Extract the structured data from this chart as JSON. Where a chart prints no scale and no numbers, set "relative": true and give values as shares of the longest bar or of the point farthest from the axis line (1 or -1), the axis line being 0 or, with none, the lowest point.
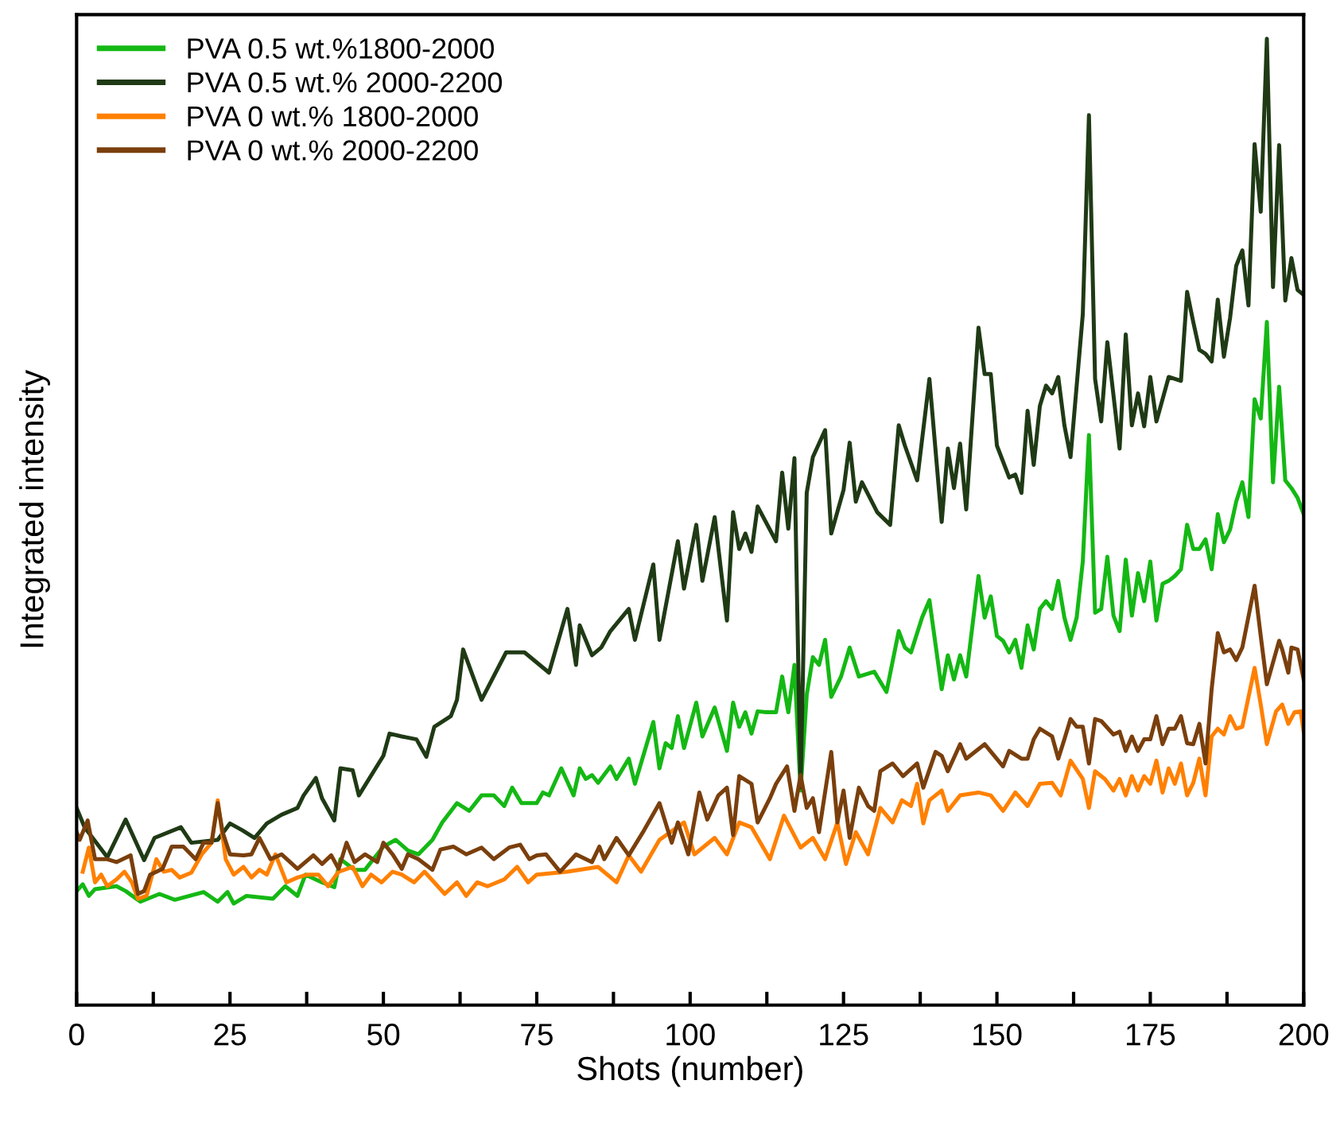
{
  "chart_data": {
    "type": "line",
    "relative": true,
    "xlabel": "Shots (number)",
    "ylabel": "Integrated intensity",
    "xlim": [
      0,
      200
    ],
    "xticks": [
      0,
      {
        "value": 12.5,
        "label": null
      },
      25,
      {
        "value": 37.5,
        "label": null
      },
      50,
      {
        "value": 62.5,
        "label": null
      },
      75,
      {
        "value": 87.5,
        "label": null
      },
      100,
      {
        "value": 112.5,
        "label": null
      },
      125,
      {
        "value": 137.5,
        "label": null
      },
      150,
      {
        "value": 162.5,
        "label": null
      },
      175,
      {
        "value": 187.5,
        "label": null
      },
      200
    ],
    "legend": "top left",
    "grid": false,
    "marker": "none",
    "line_style": "solid",
    "series": [
      {
        "name": "PVA 0.5 wt.%1800-2000",
        "color": "#14b814",
        "x": [
          0,
          1,
          2,
          3,
          6.5,
          8,
          10.4,
          13.5,
          16,
          20.7,
          23,
          24.6,
          25.6,
          27.7,
          32,
          34,
          36,
          37.3,
          40,
          42,
          43,
          45.3,
          47,
          50,
          52,
          54,
          55.7,
          58,
          59.6,
          62,
          64,
          66,
          68,
          69.7,
          71,
          72.5,
          75,
          76,
          77,
          79,
          81,
          82,
          83,
          84,
          85,
          87,
          88,
          90,
          91,
          94,
          95,
          96,
          97,
          98,
          99,
          101,
          102,
          104,
          106,
          107,
          108,
          109,
          110,
          111,
          112.4,
          114,
          115,
          116,
          117,
          118,
          119,
          120,
          121,
          122,
          123,
          124.6,
          126,
          127.5,
          130,
          132,
          134,
          135,
          136,
          137.8,
          139,
          141,
          142,
          143,
          144,
          145,
          147,
          148,
          149,
          150,
          151,
          152,
          153,
          154,
          155,
          156,
          157,
          158,
          159,
          160,
          161,
          162,
          163,
          164,
          165,
          166,
          167,
          168,
          169,
          170,
          171,
          172,
          173,
          174,
          175,
          176,
          177,
          178,
          179,
          180,
          181,
          182,
          183,
          184,
          185,
          186,
          187,
          188,
          189,
          190,
          191,
          192,
          193,
          194,
          195,
          196,
          197,
          198,
          199,
          200
        ],
        "values": [
          0.118,
          0.125,
          0.113,
          0.12,
          0.123,
          0.118,
          0.107,
          0.115,
          0.109,
          0.117,
          0.107,
          0.117,
          0.105,
          0.113,
          0.11,
          0.123,
          0.113,
          0.135,
          0.127,
          0.122,
          0.151,
          0.14,
          0.14,
          0.164,
          0.171,
          0.16,
          0.156,
          0.171,
          0.189,
          0.209,
          0.201,
          0.217,
          0.217,
          0.206,
          0.225,
          0.209,
          0.209,
          0.22,
          0.217,
          0.245,
          0.217,
          0.245,
          0.234,
          0.238,
          0.23,
          0.247,
          0.234,
          0.255,
          0.229,
          0.293,
          0.245,
          0.271,
          0.266,
          0.299,
          0.266,
          0.313,
          0.278,
          0.308,
          0.263,
          0.313,
          0.288,
          0.303,
          0.281,
          0.304,
          0.303,
          0.303,
          0.34,
          0.303,
          0.352,
          0.222,
          0.321,
          0.36,
          0.352,
          0.378,
          0.319,
          0.34,
          0.37,
          0.34,
          0.345,
          0.324,
          0.387,
          0.37,
          0.365,
          0.401,
          0.419,
          0.327,
          0.362,
          0.337,
          0.362,
          0.34,
          0.444,
          0.401,
          0.423,
          0.382,
          0.377,
          0.365,
          0.378,
          0.349,
          0.393,
          0.368,
          0.41,
          0.418,
          0.41,
          0.439,
          0.401,
          0.378,
          0.401,
          0.459,
          0.59,
          0.406,
          0.41,
          0.464,
          0.403,
          0.387,
          0.461,
          0.403,
          0.447,
          0.418,
          0.459,
          0.398,
          0.436,
          0.439,
          0.444,
          0.451,
          0.497,
          0.472,
          0.472,
          0.482,
          0.451,
          0.508,
          0.479,
          0.492,
          0.521,
          0.541,
          0.505,
          0.627,
          0.607,
          0.707,
          0.541,
          0.64,
          0.543,
          0.535,
          0.525,
          0.508
        ]
      },
      {
        "name": "PVA 0.5 wt.% 2000-2200",
        "color": "#1f3a15",
        "x": [
          0,
          1.3,
          5,
          8,
          11,
          12.7,
          17,
          18.7,
          23,
          25,
          27,
          29,
          31,
          33.4,
          36,
          37,
          39,
          40,
          42,
          43,
          45,
          46,
          50,
          51,
          53,
          55.4,
          57,
          58.3,
          61,
          62,
          63,
          66,
          70,
          73,
          77,
          80,
          81.4,
          82,
          84,
          85.5,
          87,
          90,
          91,
          94,
          95,
          98,
          99,
          101,
          102,
          104,
          106,
          107,
          108,
          109,
          110,
          111,
          114,
          115,
          116,
          117,
          118,
          119,
          120,
          122,
          123,
          125,
          126,
          127,
          128,
          130.5,
          132.6,
          134,
          135,
          137,
          139,
          141,
          142,
          143,
          144,
          145,
          147,
          148,
          149,
          150,
          152,
          153,
          154,
          155,
          156,
          157,
          158,
          159,
          160,
          161,
          162,
          164,
          165,
          166,
          167,
          168,
          170,
          171,
          172,
          173,
          174,
          175,
          176,
          178,
          180,
          181,
          182,
          183,
          184,
          185,
          186,
          187,
          188,
          189,
          190,
          191,
          192,
          193,
          194,
          195,
          196,
          197,
          198,
          199,
          200
        ],
        "values": [
          0.204,
          0.184,
          0.153,
          0.192,
          0.15,
          0.173,
          0.184,
          0.168,
          0.171,
          0.188,
          0.181,
          0.173,
          0.188,
          0.197,
          0.204,
          0.217,
          0.235,
          0.214,
          0.191,
          0.245,
          0.243,
          0.217,
          0.258,
          0.281,
          0.278,
          0.275,
          0.257,
          0.288,
          0.299,
          0.316,
          0.368,
          0.316,
          0.365,
          0.365,
          0.344,
          0.41,
          0.352,
          0.393,
          0.362,
          0.37,
          0.387,
          0.41,
          0.378,
          0.456,
          0.378,
          0.48,
          0.431,
          0.497,
          0.439,
          0.505,
          0.398,
          0.51,
          0.472,
          0.488,
          0.469,
          0.516,
          0.48,
          0.551,
          0.493,
          0.566,
          0.225,
          0.53,
          0.567,
          0.595,
          0.488,
          0.533,
          0.582,
          0.521,
          0.541,
          0.51,
          0.497,
          0.6,
          0.579,
          0.543,
          0.648,
          0.5,
          0.576,
          0.535,
          0.581,
          0.513,
          0.701,
          0.653,
          0.653,
          0.579,
          0.546,
          0.549,
          0.53,
          0.615,
          0.559,
          0.62,
          0.641,
          0.633,
          0.65,
          0.6,
          0.567,
          0.715,
          0.921,
          0.648,
          0.604,
          0.686,
          0.576,
          0.694,
          0.6,
          0.633,
          0.599,
          0.65,
          0.604,
          0.65,
          0.646,
          0.738,
          0.707,
          0.678,
          0.674,
          0.666,
          0.73,
          0.671,
          0.711,
          0.765,
          0.781,
          0.724,
          0.891,
          0.821,
          1.0,
          0.743,
          0.89,
          0.729,
          0.773,
          0.74,
          0.735
        ]
      },
      {
        "name": "PVA 0 wt.% 1800-2000",
        "color": "#ff8000",
        "x": [
          1,
          2,
          3,
          4,
          5,
          6.5,
          7.8,
          9,
          10,
          11.4,
          13,
          14.2,
          15.5,
          16.8,
          18.7,
          20.4,
          22,
          23,
          24.3,
          25.6,
          27.2,
          28.5,
          29.8,
          31,
          32.4,
          34.2,
          36,
          37.6,
          39.4,
          41,
          42.7,
          45,
          46.6,
          48,
          49.7,
          51.5,
          53,
          55,
          56.7,
          58.3,
          60,
          62,
          63.5,
          65.3,
          67,
          69.7,
          71.8,
          73.6,
          75,
          80,
          85,
          88,
          90,
          92,
          95,
          99,
          100.7,
          104,
          106,
          108,
          110,
          113,
          115.3,
          118,
          120,
          122,
          124,
          125.4,
          127,
          129,
          131,
          133,
          134.5,
          136,
          137,
          138,
          139,
          141,
          142,
          144,
          147,
          149,
          151,
          153,
          155,
          157,
          159,
          160.4,
          162,
          164,
          165,
          166,
          167.6,
          169,
          170,
          171,
          172,
          173,
          174,
          175,
          176,
          177,
          178,
          179,
          180,
          181,
          182,
          183,
          184,
          185,
          186,
          187,
          188,
          189,
          190,
          192,
          193,
          194,
          195.5,
          196.5,
          197.5,
          198.5,
          199.5,
          200
        ],
        "values": [
          0.138,
          0.163,
          0.127,
          0.135,
          0.123,
          0.13,
          0.138,
          0.127,
          0.11,
          0.113,
          0.151,
          0.138,
          0.14,
          0.132,
          0.137,
          0.156,
          0.168,
          0.212,
          0.151,
          0.135,
          0.143,
          0.132,
          0.14,
          0.135,
          0.156,
          0.127,
          0.132,
          0.135,
          0.135,
          0.123,
          0.138,
          0.143,
          0.123,
          0.135,
          0.127,
          0.138,
          0.135,
          0.127,
          0.138,
          0.127,
          0.115,
          0.127,
          0.113,
          0.127,
          0.123,
          0.13,
          0.143,
          0.127,
          0.135,
          0.138,
          0.143,
          0.127,
          0.155,
          0.138,
          0.171,
          0.189,
          0.156,
          0.173,
          0.156,
          0.189,
          0.184,
          0.151,
          0.196,
          0.163,
          0.173,
          0.151,
          0.189,
          0.146,
          0.179,
          0.156,
          0.204,
          0.189,
          0.212,
          0.206,
          0.229,
          0.188,
          0.212,
          0.222,
          0.201,
          0.217,
          0.22,
          0.217,
          0.201,
          0.22,
          0.206,
          0.229,
          0.23,
          0.217,
          0.253,
          0.234,
          0.204,
          0.242,
          0.234,
          0.222,
          0.234,
          0.217,
          0.237,
          0.222,
          0.237,
          0.229,
          0.253,
          0.22,
          0.245,
          0.229,
          0.25,
          0.217,
          0.23,
          0.255,
          0.217,
          0.278,
          0.286,
          0.28,
          0.299,
          0.286,
          0.288,
          0.349,
          0.311,
          0.27,
          0.304,
          0.311,
          0.291,
          0.303,
          0.304,
          0.283
        ]
      },
      {
        "name": "PVA 0 wt.% 2000-2200",
        "color": "#7a3f0c",
        "x": [
          0,
          0.5,
          1.8,
          3,
          5,
          6.5,
          8.8,
          10,
          11,
          12,
          14,
          15.5,
          17.4,
          19.4,
          20.7,
          22,
          23,
          23.8,
          25,
          27.2,
          28.5,
          29.8,
          31.6,
          33.4,
          36,
          38.6,
          40,
          41.5,
          42.7,
          44,
          45.3,
          47,
          49,
          50,
          51.5,
          53,
          54,
          55.7,
          58,
          59.3,
          61.4,
          63.5,
          66,
          68,
          70.5,
          72.3,
          73.8,
          75,
          76.5,
          78.8,
          81.4,
          84,
          85.2,
          86,
          88,
          90,
          92.5,
          95,
          97,
          98,
          99.7,
          101.5,
          102.8,
          104.6,
          106,
          107,
          108,
          110,
          111,
          113,
          114,
          115.8,
          117,
          118,
          119,
          120,
          121,
          123,
          124,
          125,
          126,
          127.5,
          129,
          130,
          131,
          133,
          134.7,
          137,
          138,
          140,
          141,
          142,
          144,
          145,
          148,
          151,
          152,
          154,
          155,
          156,
          157,
          159,
          160,
          161,
          162,
          163,
          164,
          165,
          166,
          167,
          169,
          170,
          171,
          172,
          173,
          174,
          175,
          176,
          177,
          178,
          179,
          180,
          181,
          182,
          183,
          184,
          185,
          186,
          187,
          188,
          189,
          190,
          192,
          193,
          194,
          196,
          196.5,
          197.5,
          198,
          199,
          200
        ],
        "values": [
          0.179,
          0.171,
          0.191,
          0.151,
          0.151,
          0.148,
          0.155,
          0.115,
          0.118,
          0.135,
          0.141,
          0.164,
          0.164,
          0.151,
          0.168,
          0.168,
          0.209,
          0.179,
          0.156,
          0.155,
          0.156,
          0.173,
          0.151,
          0.156,
          0.141,
          0.155,
          0.146,
          0.155,
          0.141,
          0.168,
          0.148,
          0.156,
          0.148,
          0.168,
          0.156,
          0.141,
          0.156,
          0.151,
          0.14,
          0.161,
          0.164,
          0.156,
          0.163,
          0.151,
          0.163,
          0.166,
          0.151,
          0.155,
          0.156,
          0.138,
          0.156,
          0.148,
          0.164,
          0.151,
          0.173,
          0.155,
          0.181,
          0.209,
          0.168,
          0.189,
          0.156,
          0.22,
          0.192,
          0.217,
          0.225,
          0.176,
          0.237,
          0.229,
          0.189,
          0.214,
          0.229,
          0.247,
          0.201,
          0.238,
          0.204,
          0.214,
          0.179,
          0.262,
          0.189,
          0.222,
          0.173,
          0.225,
          0.206,
          0.201,
          0.242,
          0.25,
          0.237,
          0.25,
          0.225,
          0.262,
          0.258,
          0.242,
          0.27,
          0.255,
          0.27,
          0.247,
          0.263,
          0.255,
          0.255,
          0.275,
          0.286,
          0.278,
          0.255,
          0.275,
          0.296,
          0.288,
          0.288,
          0.25,
          0.296,
          0.294,
          0.28,
          0.283,
          0.263,
          0.278,
          0.263,
          0.275,
          0.275,
          0.299,
          0.27,
          0.286,
          0.286,
          0.299,
          0.271,
          0.27,
          0.291,
          0.25,
          0.327,
          0.385,
          0.365,
          0.368,
          0.357,
          0.37,
          0.434,
          0.382,
          0.332,
          0.377,
          0.368,
          0.344,
          0.37,
          0.368,
          0.337
        ]
      }
    ]
  }
}
